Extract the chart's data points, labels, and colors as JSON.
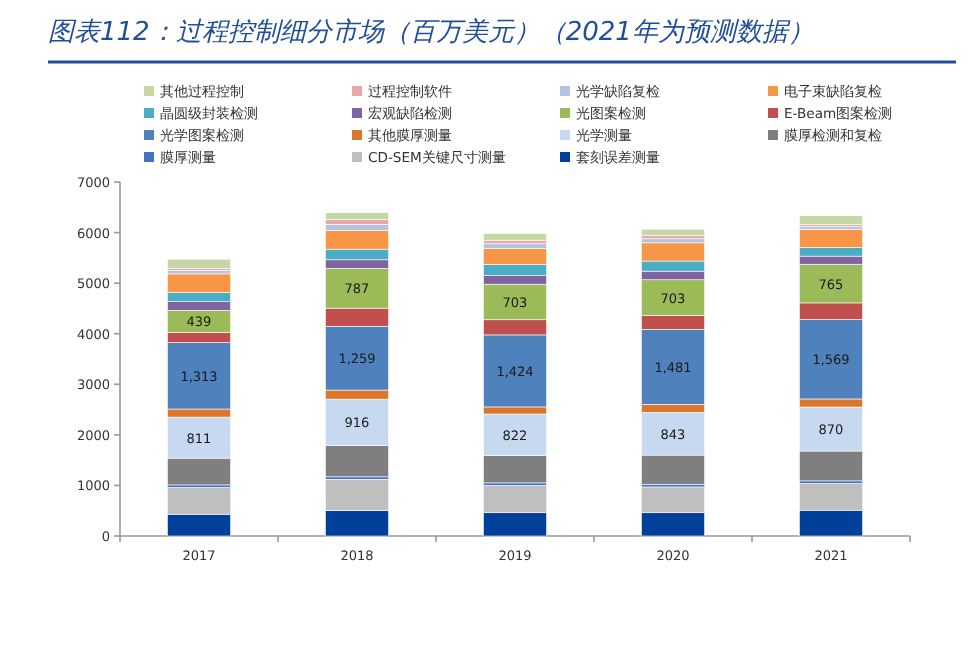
{
  "chart_data": {
    "type": "bar",
    "stacked": true,
    "title": "图表112：过程控制细分市场（百万美元）（2021年为预测数据）",
    "categories": [
      "2017",
      "2018",
      "2019",
      "2020",
      "2021"
    ],
    "ylim": [
      0,
      7000
    ],
    "yticks": [
      0,
      1000,
      2000,
      3000,
      4000,
      5000,
      6000,
      7000
    ],
    "legend": "top",
    "series": [
      {
        "name": "套刻误差测量",
        "color": "#003f9a",
        "values": [
          430,
          500,
          460,
          460,
          510
        ]
      },
      {
        "name": "CD-SEM关键尺寸测量",
        "color": "#bfbfbf",
        "values": [
          530,
          620,
          540,
          510,
          530
        ]
      },
      {
        "name": "膜厚测量",
        "color": "#4472c4",
        "values": [
          50,
          50,
          50,
          50,
          50
        ]
      },
      {
        "name": "膜厚检测和复检",
        "color": "#7f7f7f",
        "values": [
          530,
          620,
          540,
          580,
          590
        ]
      },
      {
        "name": "光学测量",
        "color": "#c6d9f0",
        "values": [
          811,
          916,
          822,
          843,
          870
        ],
        "value_labels": [
          "811",
          "916",
          "822",
          "843",
          "870"
        ]
      },
      {
        "name": "其他膜厚测量",
        "color": "#d9782d",
        "values": [
          160,
          180,
          140,
          160,
          160
        ]
      },
      {
        "name": "光学图案检测",
        "color": "#4f81bd",
        "values": [
          1313,
          1259,
          1424,
          1481,
          1569
        ],
        "value_labels": [
          "1,313",
          "1,259",
          "1,424",
          "1,481",
          "1,569"
        ]
      },
      {
        "name": "E-Beam图案检测",
        "color": "#c0504d",
        "values": [
          200,
          360,
          300,
          280,
          330
        ]
      },
      {
        "name": "光图案检测",
        "color": "#9bbb59",
        "values": [
          439,
          787,
          703,
          703,
          765
        ],
        "value_labels": [
          "439",
          "787",
          "703",
          "703",
          "765"
        ]
      },
      {
        "name": "宏观缺陷检测",
        "color": "#8064a2",
        "values": [
          170,
          170,
          170,
          170,
          160
        ]
      },
      {
        "name": "晶圆级封装检测",
        "color": "#4bacc6",
        "values": [
          180,
          210,
          220,
          200,
          170
        ]
      },
      {
        "name": "电子束缺陷复检",
        "color": "#f79646",
        "values": [
          370,
          370,
          320,
          360,
          360
        ]
      },
      {
        "name": "光学缺陷复检",
        "color": "#b4c3e0",
        "values": [
          70,
          120,
          90,
          80,
          50
        ]
      },
      {
        "name": "过程控制软件",
        "color": "#e6a8a8",
        "values": [
          40,
          100,
          70,
          70,
          40
        ]
      },
      {
        "name": "其他过程控制",
        "color": "#c4d7a4",
        "values": [
          180,
          130,
          130,
          120,
          180
        ]
      }
    ]
  }
}
